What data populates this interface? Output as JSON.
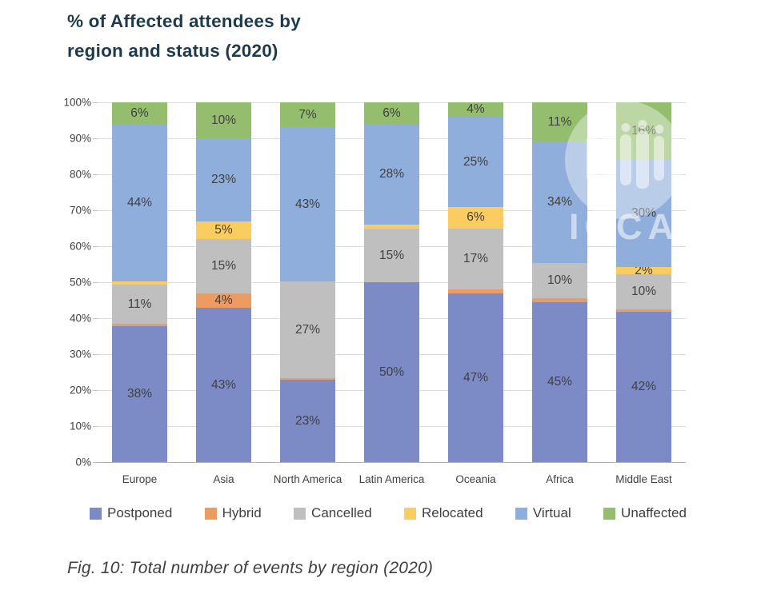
{
  "header": {
    "title_line1": "% of Affected attendees by",
    "title_line2": "region and status (2020)"
  },
  "watermark": {
    "text": "ICCA"
  },
  "caption": "Fig. 10: Total number of events by region (2020)",
  "chart_data": {
    "type": "bar",
    "stacked": true,
    "title": "% of Affected attendees by region and status (2020)",
    "xlabel": "",
    "ylabel": "",
    "ylim": [
      0,
      100
    ],
    "grid": true,
    "legend_position": "bottom",
    "y_ticks_top_to_bottom": [
      "100%",
      "90%",
      "80%",
      "70%",
      "60%",
      "50%",
      "40%",
      "30%",
      "20%",
      "10%",
      "0%"
    ],
    "categories": [
      "Europe",
      "Asia",
      "North America",
      "Latin America",
      "Oceania",
      "Africa",
      "Middle East"
    ],
    "series": [
      {
        "name": "Postponed",
        "color": "#7c8bc6",
        "values": [
          38,
          43,
          23,
          50,
          47,
          45,
          42
        ],
        "labels": [
          "38%",
          "43%",
          "23%",
          "50%",
          "47%",
          "45%",
          "42%"
        ]
      },
      {
        "name": "Hybrid",
        "color": "#ee9b62",
        "values": [
          0.6,
          4,
          0.5,
          0,
          1,
          1,
          0.6
        ],
        "labels": [
          "",
          "4%",
          "",
          "",
          "",
          "",
          ""
        ]
      },
      {
        "name": "Cancelled",
        "color": "#bfbfbf",
        "values": [
          11,
          15,
          27,
          15,
          17,
          10,
          10
        ],
        "labels": [
          "11%",
          "15%",
          "27%",
          "15%",
          "17%",
          "10%",
          "10%"
        ]
      },
      {
        "name": "Relocated",
        "color": "#fbcd60",
        "values": [
          1,
          5,
          0,
          1,
          6,
          0,
          2
        ],
        "labels": [
          "",
          "5%",
          "",
          "",
          "6%",
          "",
          "2%"
        ]
      },
      {
        "name": "Virtual",
        "color": "#8faedb",
        "values": [
          44,
          23,
          43,
          28,
          25,
          34,
          30
        ],
        "labels": [
          "44%",
          "23%",
          "43%",
          "28%",
          "25%",
          "34%",
          "30%"
        ]
      },
      {
        "name": "Unaffected",
        "color": "#95bd6e",
        "values": [
          6,
          10,
          7,
          6,
          4,
          11,
          16
        ],
        "labels": [
          "6%",
          "10%",
          "7%",
          "6%",
          "4%",
          "11%",
          "16%"
        ]
      }
    ]
  }
}
